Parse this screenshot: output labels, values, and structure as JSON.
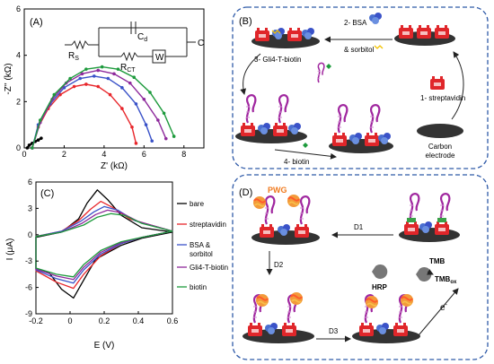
{
  "colors": {
    "bare": "#000000",
    "streptavidin": "#e8262b",
    "bsa": "#3a52c8",
    "gli4": "#8e2a9c",
    "biotin": "#1d9a3c",
    "panel_border": "#2f5aa8",
    "pwg": "#f07a1e",
    "tmb": "#111111"
  },
  "panel_a": {
    "label": "(A)",
    "circuit": {
      "rs": "R",
      "rs_sub": "S",
      "cd": "C",
      "cd_sub": "d",
      "rct": "R",
      "rct_sub": "CT",
      "w": "W",
      "c": "C"
    },
    "ylabel": "-Z'' (kΩ)",
    "xlabel": "Z' (kΩ)",
    "xticks": [
      "0",
      "2",
      "4",
      "6",
      "8"
    ],
    "yticks": [
      "0",
      "2",
      "4",
      "6"
    ]
  },
  "panel_b": {
    "label": "(B)",
    "step1": "1- streptavidin",
    "step2": "2- BSA",
    "step2b": "& sorbitol",
    "step3": "3- Gli4-T-biotin",
    "step4": "4- biotin",
    "electrode": "Carbon",
    "electrode2": "electrode"
  },
  "panel_c": {
    "label": "(C)",
    "ylabel": "I (μA)",
    "xlabel": "E (V)",
    "xticks": [
      "-0.2",
      "0",
      "0.2",
      "0.4",
      "0.6"
    ],
    "yticks": [
      "6",
      "3",
      "0",
      "-3",
      "-6",
      "-9"
    ],
    "legend": [
      "bare",
      "streptavidin",
      "BSA &",
      "sorbitol",
      "Gli4-T-biotin",
      "biotin"
    ]
  },
  "panel_d": {
    "label": "(D)",
    "pwg": "PWG",
    "d1": "D1",
    "d2": "D2",
    "d3": "D3",
    "hrp": "HRP",
    "tmb": "TMB",
    "tmbox": "TMB",
    "tmbox_sub": "ox",
    "electron": "e",
    "electron_sup": "-"
  },
  "chart_data": [
    {
      "type": "scatter",
      "panel": "A",
      "xlabel": "Z' (kΩ)",
      "ylabel": "-Z'' (kΩ)",
      "xlim": [
        0,
        9
      ],
      "ylim": [
        0,
        6
      ],
      "series": [
        {
          "name": "bare",
          "points": [
            [
              0.15,
              0
            ],
            [
              0.25,
              0.12
            ],
            [
              0.4,
              0.2
            ],
            [
              0.55,
              0.28
            ],
            [
              0.7,
              0.34
            ],
            [
              0.85,
              0.42
            ]
          ]
        },
        {
          "name": "streptavidin",
          "points": [
            [
              0.4,
              0
            ],
            [
              0.7,
              0.9
            ],
            [
              1.2,
              1.7
            ],
            [
              1.8,
              2.3
            ],
            [
              2.5,
              2.65
            ],
            [
              3.1,
              2.75
            ],
            [
              3.7,
              2.65
            ],
            [
              4.3,
              2.3
            ],
            [
              4.9,
              1.7
            ],
            [
              5.4,
              0.9
            ],
            [
              5.6,
              0.2
            ]
          ]
        },
        {
          "name": "BSA & sorbitol",
          "points": [
            [
              0.4,
              0
            ],
            [
              0.7,
              1.0
            ],
            [
              1.3,
              1.9
            ],
            [
              2.0,
              2.6
            ],
            [
              2.8,
              3.0
            ],
            [
              3.5,
              3.1
            ],
            [
              4.2,
              3.0
            ],
            [
              4.9,
              2.6
            ],
            [
              5.6,
              1.9
            ],
            [
              6.1,
              1.0
            ],
            [
              6.4,
              0.3
            ]
          ]
        },
        {
          "name": "Gli4-T-biotin",
          "points": [
            [
              0.4,
              0
            ],
            [
              0.8,
              1.1
            ],
            [
              1.4,
              2.1
            ],
            [
              2.1,
              2.8
            ],
            [
              2.9,
              3.2
            ],
            [
              3.7,
              3.35
            ],
            [
              4.5,
              3.2
            ],
            [
              5.3,
              2.8
            ],
            [
              6.0,
              2.1
            ],
            [
              6.7,
              1.2
            ],
            [
              7.1,
              0.4
            ]
          ]
        },
        {
          "name": "biotin",
          "points": [
            [
              0.4,
              0
            ],
            [
              0.8,
              1.2
            ],
            [
              1.5,
              2.3
            ],
            [
              2.3,
              3.0
            ],
            [
              3.1,
              3.4
            ],
            [
              3.9,
              3.5
            ],
            [
              4.7,
              3.4
            ],
            [
              5.5,
              3.05
            ],
            [
              6.3,
              2.4
            ],
            [
              7.0,
              1.5
            ],
            [
              7.5,
              0.5
            ]
          ]
        }
      ]
    },
    {
      "type": "line",
      "panel": "C",
      "xlabel": "E (V)",
      "ylabel": "I (μA)",
      "xlim": [
        -0.2,
        0.6
      ],
      "ylim": [
        -9,
        6
      ],
      "series": [
        {
          "name": "bare",
          "points": [
            [
              -0.2,
              -0.3
            ],
            [
              -0.05,
              0.3
            ],
            [
              0.05,
              1.8
            ],
            [
              0.1,
              3.6
            ],
            [
              0.16,
              5.1
            ],
            [
              0.22,
              4.0
            ],
            [
              0.3,
              2.2
            ],
            [
              0.42,
              0.8
            ],
            [
              0.6,
              0.3
            ],
            [
              0.42,
              -0.4
            ],
            [
              0.3,
              -1.2
            ],
            [
              0.15,
              -2.8
            ],
            [
              0.07,
              -5.5
            ],
            [
              0.02,
              -7.2
            ],
            [
              -0.05,
              -6.2
            ],
            [
              -0.12,
              -4.4
            ],
            [
              -0.2,
              -3.9
            ]
          ]
        },
        {
          "name": "streptavidin",
          "points": [
            [
              -0.2,
              -0.2
            ],
            [
              -0.05,
              0.4
            ],
            [
              0.05,
              1.6
            ],
            [
              0.12,
              2.9
            ],
            [
              0.18,
              3.8
            ],
            [
              0.25,
              3.1
            ],
            [
              0.35,
              1.8
            ],
            [
              0.6,
              0.4
            ],
            [
              0.42,
              -0.3
            ],
            [
              0.3,
              -1.0
            ],
            [
              0.18,
              -2.4
            ],
            [
              0.08,
              -4.5
            ],
            [
              0.02,
              -6.1
            ],
            [
              -0.08,
              -5.4
            ],
            [
              -0.2,
              -4.1
            ]
          ]
        },
        {
          "name": "BSA & sorbitol",
          "points": [
            [
              -0.2,
              -0.2
            ],
            [
              -0.05,
              0.4
            ],
            [
              0.06,
              1.5
            ],
            [
              0.14,
              2.6
            ],
            [
              0.2,
              3.2
            ],
            [
              0.28,
              2.8
            ],
            [
              0.38,
              1.6
            ],
            [
              0.6,
              0.4
            ],
            [
              0.42,
              -0.3
            ],
            [
              0.3,
              -1.0
            ],
            [
              0.18,
              -2.2
            ],
            [
              0.08,
              -4.0
            ],
            [
              0.02,
              -5.5
            ],
            [
              -0.08,
              -5.0
            ],
            [
              -0.2,
              -4.0
            ]
          ]
        },
        {
          "name": "Gli4-T-biotin",
          "points": [
            [
              -0.2,
              -0.2
            ],
            [
              -0.05,
              0.3
            ],
            [
              0.07,
              1.3
            ],
            [
              0.15,
              2.3
            ],
            [
              0.22,
              2.8
            ],
            [
              0.3,
              2.5
            ],
            [
              0.4,
              1.5
            ],
            [
              0.6,
              0.4
            ],
            [
              0.42,
              -0.3
            ],
            [
              0.3,
              -0.9
            ],
            [
              0.18,
              -2.0
            ],
            [
              0.08,
              -3.7
            ],
            [
              0.02,
              -5.1
            ],
            [
              -0.08,
              -4.7
            ],
            [
              -0.2,
              -3.9
            ]
          ]
        },
        {
          "name": "biotin",
          "points": [
            [
              -0.2,
              -0.2
            ],
            [
              -0.05,
              0.3
            ],
            [
              0.08,
              1.1
            ],
            [
              0.16,
              2.0
            ],
            [
              0.24,
              2.4
            ],
            [
              0.32,
              2.2
            ],
            [
              0.42,
              1.3
            ],
            [
              0.6,
              0.4
            ],
            [
              0.42,
              -0.3
            ],
            [
              0.3,
              -0.8
            ],
            [
              0.18,
              -1.8
            ],
            [
              0.08,
              -3.4
            ],
            [
              0.02,
              -4.8
            ],
            [
              -0.08,
              -4.5
            ],
            [
              -0.2,
              -3.8
            ]
          ]
        }
      ]
    }
  ]
}
